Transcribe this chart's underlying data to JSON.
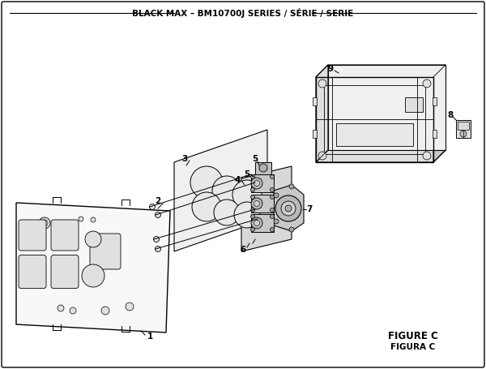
{
  "title": "BLACK MAX – BM10700J SERIES / SÉRIE / SERIE",
  "figure_label": "FIGURE C",
  "figura_label": "FIGURA C",
  "bg_color": "#ffffff",
  "line_color": "#000000",
  "part_fill": "#f5f5f5",
  "part_mid": "#e0e0e0",
  "part_dark": "#c8c8c8",
  "title_fontsize": 7.5,
  "label_fontsize": 7.5,
  "fig_label_fontsize": 8.5
}
